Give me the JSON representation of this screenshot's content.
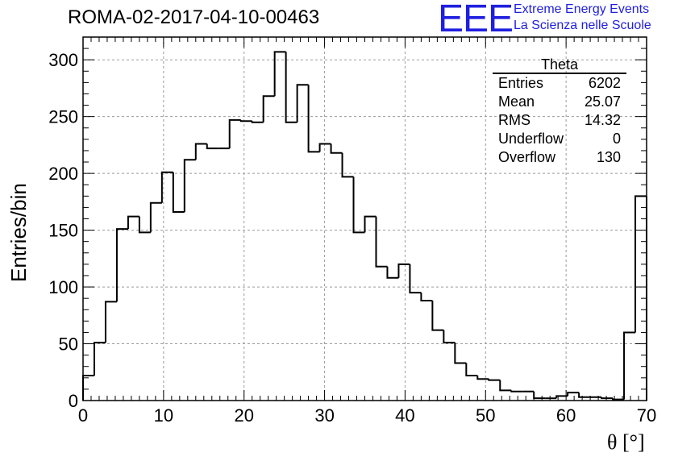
{
  "title": "ROMA-02-2017-04-10-00463",
  "logo": {
    "mark": "EEE",
    "line1": "Extreme Energy Events",
    "line2": "La Scienza nelle Scuole",
    "color": "#1f1fe0"
  },
  "stats": {
    "name": "Theta",
    "rows": [
      {
        "label": "Entries",
        "value": "6202"
      },
      {
        "label": "Mean",
        "value": "25.07"
      },
      {
        "label": "RMS",
        "value": "14.32"
      },
      {
        "label": "Underflow",
        "value": "0"
      },
      {
        "label": "Overflow",
        "value": "130"
      }
    ]
  },
  "chart_data": {
    "type": "bar",
    "style": "step-histogram",
    "ylabel": "Entries/bin",
    "xlabel": "θ [°]",
    "xlim": [
      0,
      70
    ],
    "ylim": [
      0,
      320
    ],
    "grid": true,
    "bin_width": 1.4,
    "x_ticks": [
      0,
      10,
      20,
      30,
      40,
      50,
      60,
      70
    ],
    "y_ticks": [
      0,
      50,
      100,
      150,
      200,
      250,
      300
    ],
    "values": [
      22,
      51,
      87,
      151,
      162,
      148,
      174,
      201,
      166,
      212,
      226,
      222,
      222,
      247,
      246,
      245,
      268,
      307,
      245,
      278,
      219,
      226,
      218,
      197,
      148,
      162,
      118,
      108,
      120,
      95,
      88,
      62,
      51,
      33,
      22,
      19,
      18,
      9,
      8,
      8,
      2,
      2,
      4,
      7,
      3,
      3,
      2,
      1,
      60,
      180
    ]
  }
}
